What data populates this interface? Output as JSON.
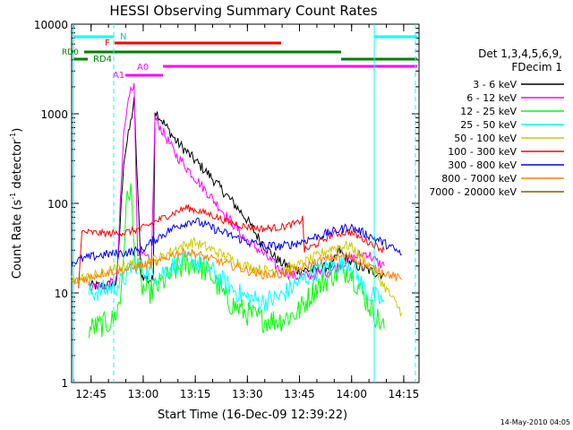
{
  "chart_data": {
    "type": "line",
    "title": "HESSI Observing Summary Count Rates",
    "xlabel": "Start Time (16-Dec-09 12:39:22)",
    "ylabel_main": "Count Rate (s",
    "ylabel_sup1": "-1",
    "ylabel_mid": " detector",
    "ylabel_sup2": "-1",
    "ylabel_end": ")",
    "yscale": "log",
    "ylim": [
      1,
      10000
    ],
    "xlim_minutes": [
      0,
      100
    ],
    "x_ticks": [
      {
        "m": 5.6,
        "label": "12:45"
      },
      {
        "m": 20.6,
        "label": "13:00"
      },
      {
        "m": 35.6,
        "label": "13:15"
      },
      {
        "m": 50.6,
        "label": "13:30"
      },
      {
        "m": 65.6,
        "label": "13:45"
      },
      {
        "m": 80.6,
        "label": "14:00"
      },
      {
        "m": 95.6,
        "label": "14:15"
      }
    ],
    "y_ticks": [
      {
        "v": 1,
        "label": "1"
      },
      {
        "v": 10,
        "label": "10"
      },
      {
        "v": 100,
        "label": "100"
      },
      {
        "v": 1000,
        "label": "1000"
      },
      {
        "v": 10000,
        "label": "10000"
      }
    ],
    "legend": {
      "header1": "Det 1,3,4,5,6,9,",
      "header2": "FDecim 1",
      "placement": "right"
    },
    "series": [
      {
        "name": "3 - 6 keV",
        "color": "#000000",
        "noise": 0.06,
        "points": [
          [
            5,
            12
          ],
          [
            10,
            12
          ],
          [
            13,
            13
          ],
          [
            15,
            300
          ],
          [
            17,
            800
          ],
          [
            18,
            1400
          ],
          [
            20,
            16
          ],
          [
            22,
            14
          ],
          [
            23.5,
            14
          ],
          [
            24,
            1100
          ],
          [
            30,
            500
          ],
          [
            40,
            200
          ],
          [
            50,
            70
          ],
          [
            55,
            35
          ],
          [
            60,
            22
          ],
          [
            65,
            18
          ],
          [
            70,
            18
          ],
          [
            75,
            20
          ],
          [
            77,
            30
          ],
          [
            80,
            22
          ],
          [
            85,
            18
          ],
          [
            90,
            16
          ]
        ]
      },
      {
        "name": "6 - 12 keV",
        "color": "#ff00ff",
        "noise": 0.06,
        "points": [
          [
            5,
            12
          ],
          [
            10,
            12
          ],
          [
            13,
            14
          ],
          [
            15,
            600
          ],
          [
            17,
            2100
          ],
          [
            18,
            2000
          ],
          [
            19,
            30
          ],
          [
            21,
            25
          ],
          [
            23,
            22
          ],
          [
            24,
            900
          ],
          [
            30,
            350
          ],
          [
            40,
            120
          ],
          [
            50,
            40
          ],
          [
            55,
            28
          ],
          [
            60,
            18
          ],
          [
            65,
            15
          ],
          [
            70,
            16
          ],
          [
            75,
            18
          ],
          [
            80,
            24
          ],
          [
            85,
            28
          ],
          [
            88,
            22
          ],
          [
            90,
            20
          ]
        ]
      },
      {
        "name": "12 - 25 keV",
        "color": "#00ff00",
        "noise": 0.14,
        "points": [
          [
            5,
            4
          ],
          [
            10,
            4.5
          ],
          [
            12,
            5
          ],
          [
            14,
            8
          ],
          [
            16,
            120
          ],
          [
            17,
            150
          ],
          [
            18,
            30
          ],
          [
            20,
            12
          ],
          [
            22,
            10
          ],
          [
            25,
            12
          ],
          [
            30,
            18
          ],
          [
            35,
            22
          ],
          [
            40,
            16
          ],
          [
            45,
            8
          ],
          [
            50,
            6
          ],
          [
            55,
            5
          ],
          [
            60,
            5
          ],
          [
            65,
            6
          ],
          [
            70,
            11
          ],
          [
            75,
            16
          ],
          [
            80,
            18
          ],
          [
            85,
            8
          ],
          [
            90,
            4
          ]
        ]
      },
      {
        "name": "25 - 50 keV",
        "color": "#00ffff",
        "noise": 0.12,
        "points": [
          [
            5,
            10
          ],
          [
            10,
            11
          ],
          [
            13,
            12
          ],
          [
            15,
            14
          ],
          [
            18,
            22
          ],
          [
            22,
            17
          ],
          [
            25,
            16
          ],
          [
            30,
            21
          ],
          [
            35,
            24
          ],
          [
            40,
            18
          ],
          [
            45,
            12
          ],
          [
            50,
            9
          ],
          [
            55,
            8
          ],
          [
            60,
            9
          ],
          [
            65,
            13
          ],
          [
            70,
            17
          ],
          [
            75,
            20
          ],
          [
            80,
            22
          ],
          [
            85,
            10
          ],
          [
            90,
            8
          ]
        ]
      },
      {
        "name": "50 - 100 keV",
        "color": "#cccc00",
        "noise": 0.06,
        "points": [
          [
            0,
            14
          ],
          [
            5,
            15
          ],
          [
            10,
            17
          ],
          [
            15,
            20
          ],
          [
            20,
            22
          ],
          [
            25,
            24
          ],
          [
            30,
            31
          ],
          [
            35,
            37
          ],
          [
            40,
            31
          ],
          [
            45,
            25
          ],
          [
            50,
            20
          ],
          [
            55,
            18
          ],
          [
            60,
            18
          ],
          [
            65,
            20
          ],
          [
            70,
            25
          ],
          [
            75,
            32
          ],
          [
            80,
            34
          ],
          [
            85,
            22
          ],
          [
            90,
            12
          ],
          [
            95,
            6
          ]
        ]
      },
      {
        "name": "100 - 300 keV",
        "color": "#ff0000",
        "noise": 0.04,
        "points": [
          [
            2,
            12
          ],
          [
            3,
            48
          ],
          [
            10,
            46
          ],
          [
            15,
            47
          ],
          [
            20,
            52
          ],
          [
            25,
            65
          ],
          [
            30,
            80
          ],
          [
            33,
            90
          ],
          [
            40,
            75
          ],
          [
            45,
            62
          ],
          [
            50,
            55
          ],
          [
            55,
            52
          ],
          [
            60,
            54
          ],
          [
            65,
            60
          ],
          [
            66.5,
            68
          ],
          [
            67,
            30
          ],
          [
            70,
            34
          ],
          [
            75,
            45
          ],
          [
            80,
            48
          ],
          [
            85,
            38
          ],
          [
            90,
            30
          ]
        ]
      },
      {
        "name": "300 - 800 keV",
        "color": "#0000ff",
        "noise": 0.05,
        "points": [
          [
            0,
            22
          ],
          [
            5,
            25
          ],
          [
            10,
            27
          ],
          [
            15,
            28
          ],
          [
            20,
            30
          ],
          [
            25,
            42
          ],
          [
            30,
            55
          ],
          [
            35,
            65
          ],
          [
            40,
            54
          ],
          [
            45,
            45
          ],
          [
            50,
            38
          ],
          [
            55,
            34
          ],
          [
            60,
            33
          ],
          [
            65,
            36
          ],
          [
            70,
            42
          ],
          [
            75,
            48
          ],
          [
            80,
            55
          ],
          [
            85,
            45
          ],
          [
            90,
            36
          ],
          [
            95,
            27
          ]
        ]
      },
      {
        "name": "800 - 7000 keV",
        "color": "#ff8000",
        "noise": 0.05,
        "points": [
          [
            0,
            13
          ],
          [
            5,
            15
          ],
          [
            10,
            17
          ],
          [
            15,
            18
          ],
          [
            20,
            20
          ],
          [
            25,
            22
          ],
          [
            30,
            28
          ],
          [
            35,
            28
          ],
          [
            40,
            24
          ],
          [
            45,
            21
          ],
          [
            50,
            18
          ],
          [
            55,
            16
          ],
          [
            60,
            16
          ],
          [
            65,
            18
          ],
          [
            70,
            22
          ],
          [
            75,
            25
          ],
          [
            80,
            26
          ],
          [
            85,
            20
          ],
          [
            90,
            17
          ],
          [
            95,
            14
          ]
        ]
      },
      {
        "name": "7000 - 20000 keV",
        "color": "#806000",
        "noise": 0.05,
        "points": []
      }
    ],
    "attenuator_states": [
      {
        "label": "A1",
        "x": 14.5
      },
      {
        "label": "A0",
        "x": 21.5
      }
    ],
    "state_labels": {
      "N": "N",
      "F": "F",
      "RD0": "RD0",
      "RD4": "RD4"
    },
    "footer_date": "14-May-2010 04:05"
  }
}
